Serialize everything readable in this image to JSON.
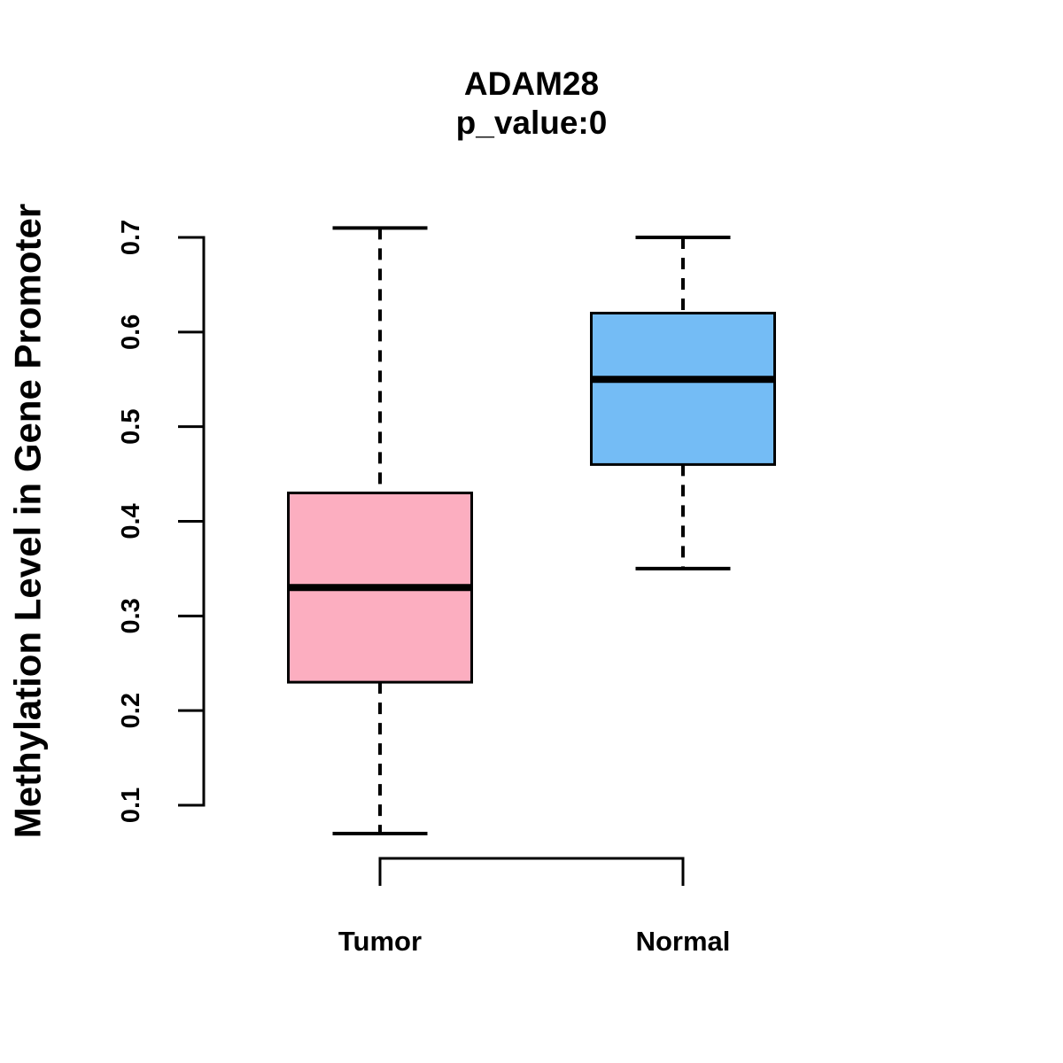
{
  "chart_data": {
    "type": "boxplot",
    "title": "ADAM28",
    "subtitle": "p_value:0",
    "ylabel": "Methylation Level in Gene Promoter",
    "xlabel": "",
    "ylim": [
      0.1,
      0.7
    ],
    "yticks": [
      0.1,
      0.2,
      0.3,
      0.4,
      0.5,
      0.6,
      0.7
    ],
    "grid": "off",
    "legend": "none",
    "x_axis_style": "bracket",
    "categories": [
      "Tumor",
      "Normal"
    ],
    "series": [
      {
        "name": "Tumor",
        "fill_color": "#FCAEC0",
        "border_color": "#000000",
        "whisker_low": 0.07,
        "q1": 0.23,
        "median": 0.33,
        "q3": 0.43,
        "whisker_high": 0.71
      },
      {
        "name": "Normal",
        "fill_color": "#74BCF5",
        "border_color": "#000000",
        "whisker_low": 0.35,
        "q1": 0.46,
        "median": 0.55,
        "q3": 0.62,
        "whisker_high": 0.7
      }
    ]
  },
  "colors": {
    "tumor_fill": "#FCAEC0",
    "normal_fill": "#74BCF5",
    "line": "#000000",
    "background": "#FFFFFF"
  }
}
